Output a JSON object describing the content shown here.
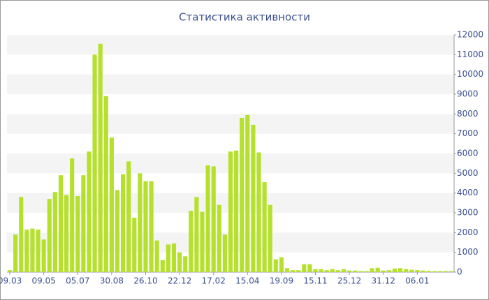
{
  "chart_data": {
    "type": "bar",
    "title": "Статистика активности",
    "categories": [
      "09.03",
      null,
      null,
      null,
      null,
      null,
      "09.05",
      null,
      null,
      null,
      null,
      null,
      "05.07",
      null,
      null,
      null,
      null,
      null,
      "30.08",
      null,
      null,
      null,
      null,
      null,
      "26.10",
      null,
      null,
      null,
      null,
      null,
      "22.12",
      null,
      null,
      null,
      null,
      null,
      "17.02",
      null,
      null,
      null,
      null,
      null,
      "15.04",
      null,
      null,
      null,
      null,
      null,
      "19.09",
      null,
      null,
      null,
      null,
      null,
      "15.11",
      null,
      null,
      null,
      null,
      null,
      "25.12",
      null,
      null,
      null,
      null,
      null,
      "31.12",
      null,
      null,
      null,
      null,
      null,
      "06.01",
      null,
      null,
      null,
      null,
      null,
      null
    ],
    "values": [
      100,
      1900,
      3800,
      2150,
      2200,
      2150,
      1650,
      3700,
      4050,
      4900,
      3900,
      5750,
      3850,
      4900,
      6100,
      11000,
      11550,
      8900,
      6800,
      4150,
      4950,
      5600,
      2750,
      5000,
      4600,
      4600,
      1600,
      600,
      1400,
      1450,
      1000,
      800,
      3100,
      3800,
      3050,
      5400,
      5350,
      3400,
      1900,
      6100,
      6150,
      7800,
      7950,
      7450,
      6050,
      4550,
      3400,
      650,
      750,
      200,
      100,
      100,
      400,
      400,
      150,
      150,
      100,
      150,
      100,
      150,
      80,
      80,
      50,
      50,
      200,
      220,
      80,
      100,
      180,
      200,
      150,
      120,
      100,
      80,
      60,
      50,
      50,
      50,
      50
    ],
    "color": "#b5e12d",
    "ylim": [
      0,
      12000
    ],
    "yticks": [
      0,
      1000,
      2000,
      3000,
      4000,
      5000,
      6000,
      7000,
      8000,
      9000,
      10000,
      11000,
      12000
    ],
    "grid": true
  }
}
